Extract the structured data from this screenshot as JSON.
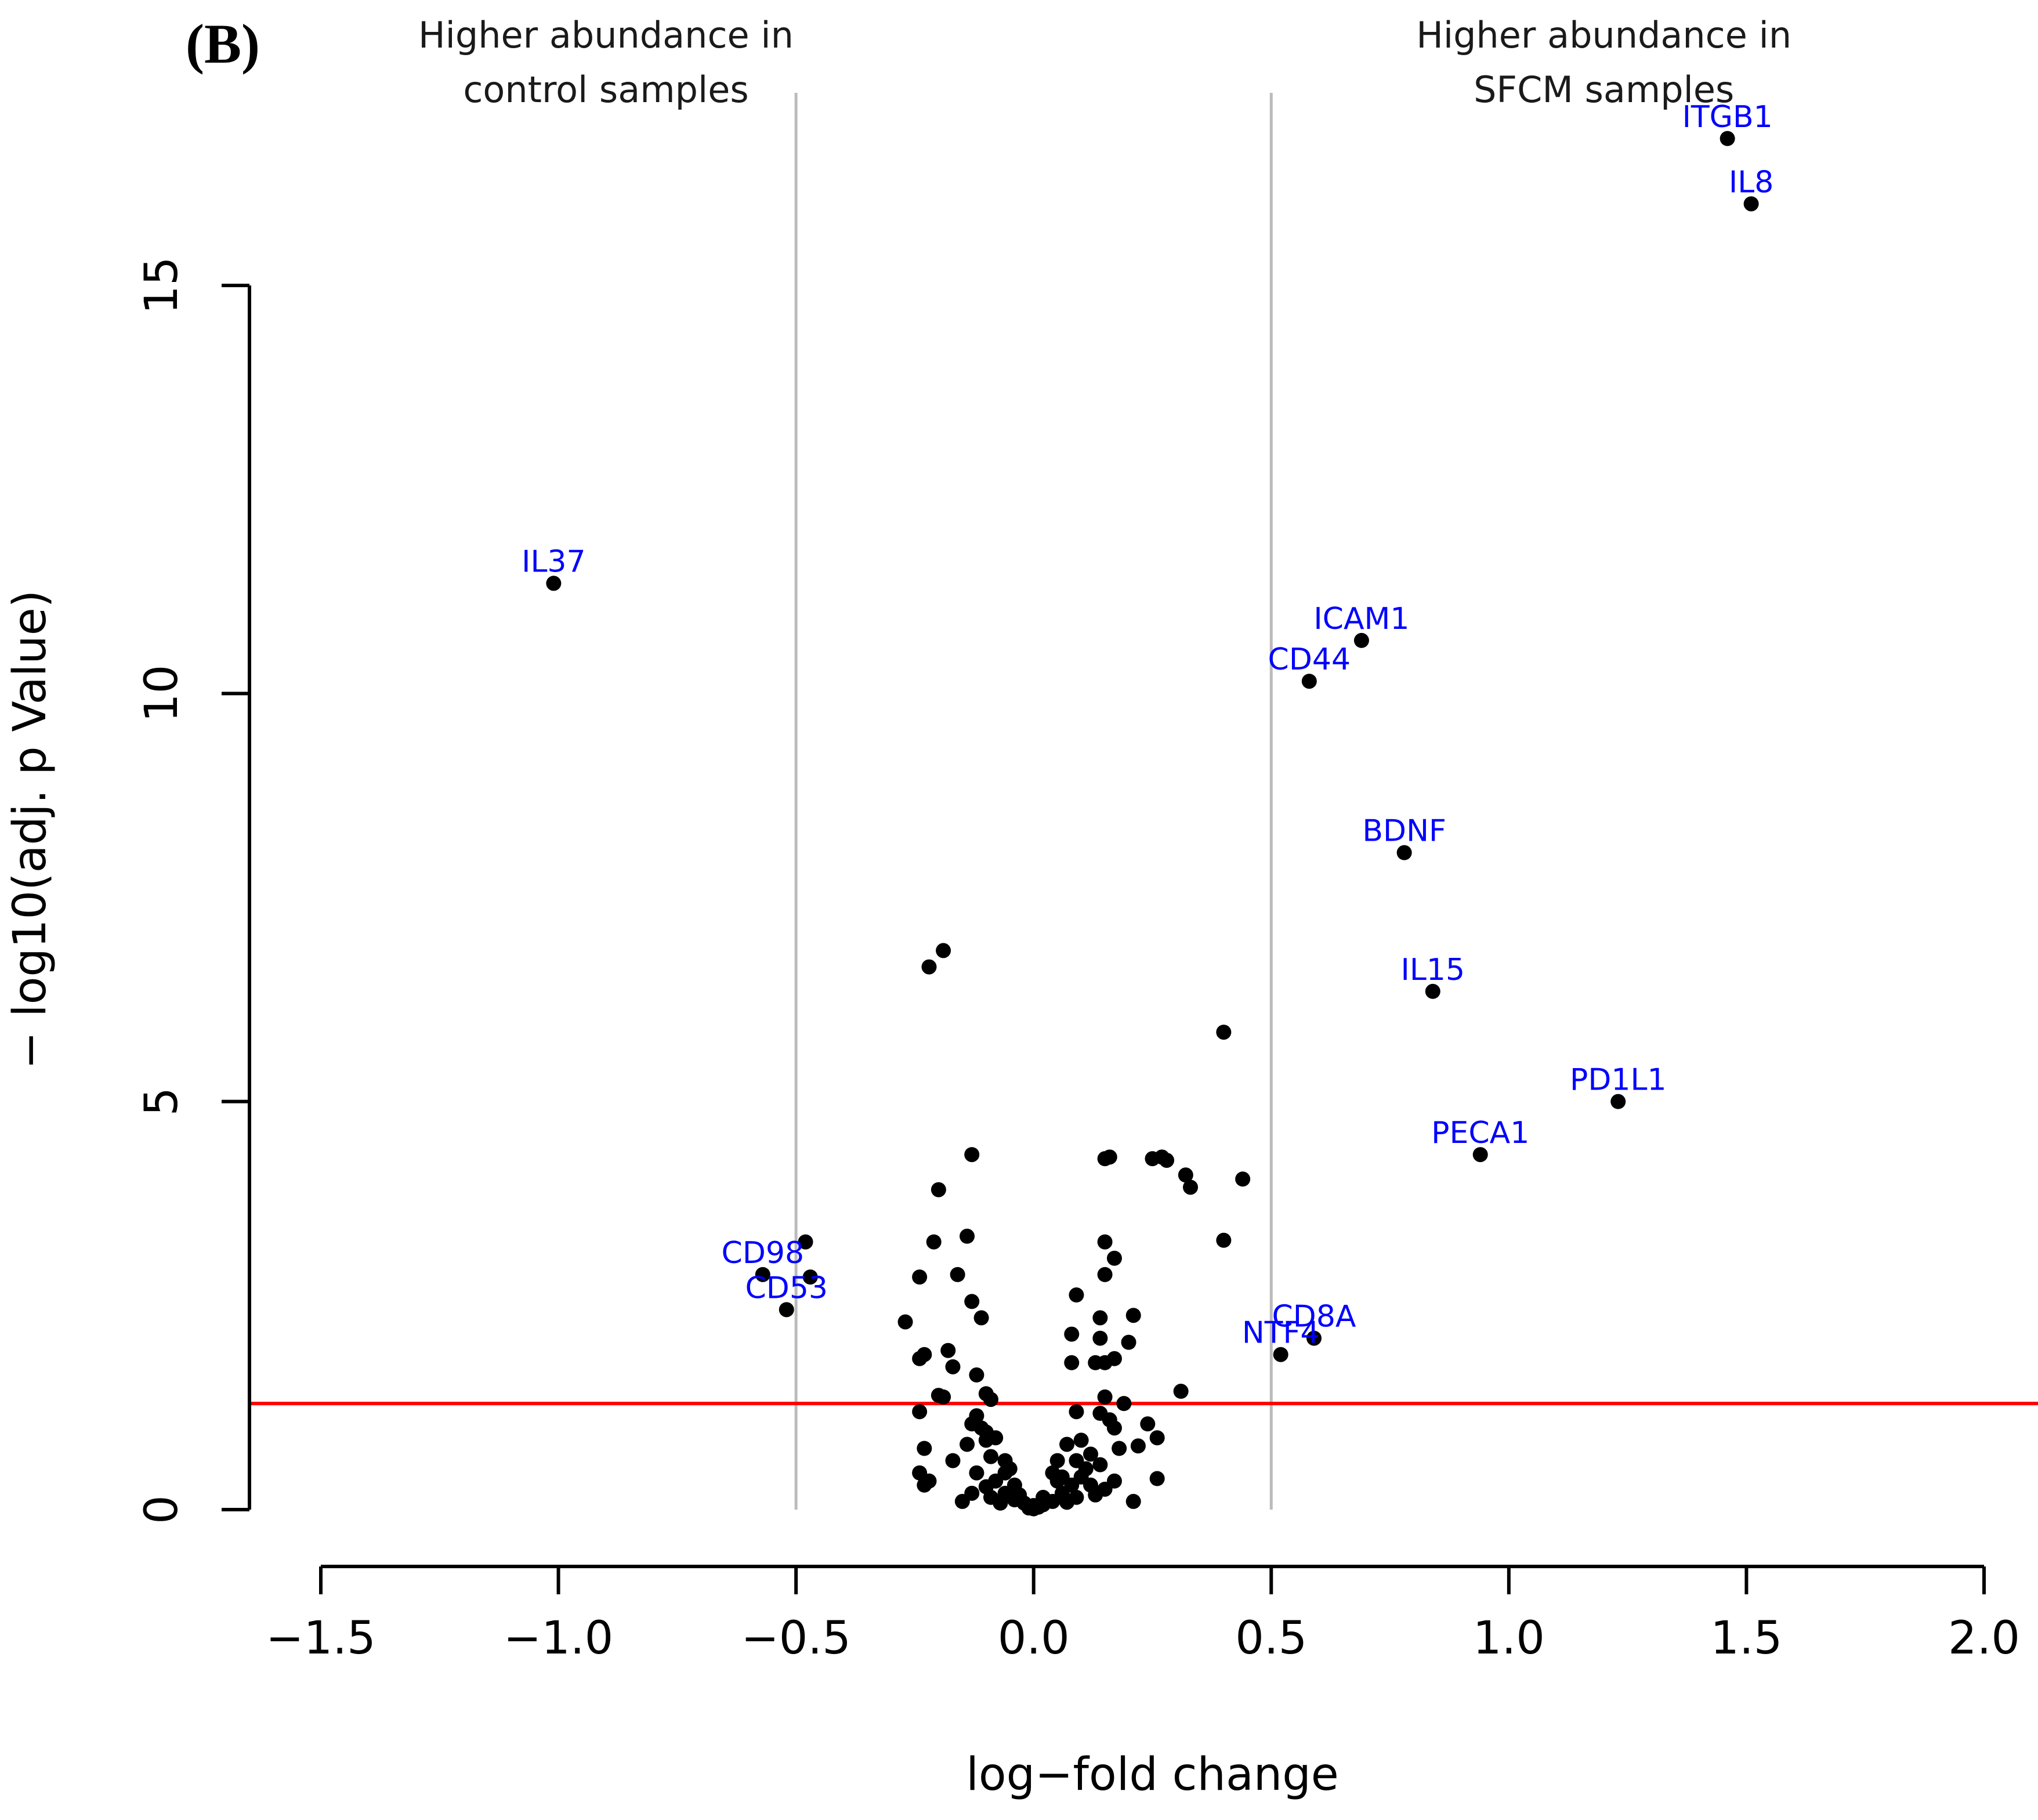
{
  "panel_label": "(B)",
  "chart_data": {
    "type": "scatter",
    "title": "",
    "xlabel": "log−fold change",
    "ylabel": "− log10(adj. p Value)",
    "xlim": [
      -1.5,
      2.0
    ],
    "ylim": [
      0,
      15
    ],
    "x_ticks": [
      -1.5,
      -1.0,
      -0.5,
      0.0,
      0.5,
      1.0,
      1.5,
      2.0
    ],
    "x_tick_labels": [
      "−1.5",
      "−1.0",
      "−0.5",
      "0.0",
      "0.5",
      "1.0",
      "1.5",
      "2.0"
    ],
    "y_ticks": [
      0,
      5,
      10,
      15
    ],
    "y_tick_labels": [
      "0",
      "5",
      "10",
      "15"
    ],
    "grid": false,
    "vertical_lines": [
      {
        "x": -0.5,
        "color": "#bbbbbb"
      },
      {
        "x": 0.5,
        "color": "#bbbbbb"
      }
    ],
    "horizontal_lines": [
      {
        "y": 1.3,
        "color": "#ff0000"
      }
    ],
    "annotations": [
      {
        "lines": [
          "Higher abundance in",
          "control samples"
        ],
        "x": -0.9
      },
      {
        "lines": [
          "Higher abundance in",
          "SFCM samples"
        ],
        "x": 1.2
      }
    ],
    "label_color": "#0000ff",
    "point_color": "#000000",
    "labeled_points": [
      {
        "label": "ITGB1",
        "x": 1.46,
        "y": 16.8
      },
      {
        "label": "IL8",
        "x": 1.51,
        "y": 16.0
      },
      {
        "label": "IL37",
        "x": -1.01,
        "y": 11.35
      },
      {
        "label": "ICAM1",
        "x": 0.69,
        "y": 10.65
      },
      {
        "label": "CD44",
        "x": 0.58,
        "y": 10.15
      },
      {
        "label": "BDNF",
        "x": 0.78,
        "y": 8.05
      },
      {
        "label": "IL15",
        "x": 0.84,
        "y": 6.35
      },
      {
        "label": "PD1L1",
        "x": 1.23,
        "y": 5.0
      },
      {
        "label": "PECA1",
        "x": 0.94,
        "y": 4.35
      },
      {
        "label": "CD98",
        "x": -0.57,
        "y": 2.88
      },
      {
        "label": "CD53",
        "x": -0.52,
        "y": 2.45
      },
      {
        "label": "CD8A",
        "x": 0.59,
        "y": 2.1
      },
      {
        "label": "NTF4",
        "x": 0.52,
        "y": 1.9
      }
    ],
    "points": [
      [
        -0.19,
        6.85
      ],
      [
        -0.22,
        6.65
      ],
      [
        0.4,
        5.85
      ],
      [
        -0.13,
        4.35
      ],
      [
        0.15,
        4.3
      ],
      [
        0.16,
        4.32
      ],
      [
        0.25,
        4.3
      ],
      [
        0.27,
        4.32
      ],
      [
        0.28,
        4.28
      ],
      [
        0.32,
        4.1
      ],
      [
        0.33,
        3.95
      ],
      [
        0.44,
        4.05
      ],
      [
        -0.2,
        3.92
      ],
      [
        -0.48,
        3.28
      ],
      [
        -0.47,
        2.85
      ],
      [
        -0.21,
        3.28
      ],
      [
        -0.14,
        3.35
      ],
      [
        0.4,
        3.3
      ],
      [
        0.15,
        3.28
      ],
      [
        0.17,
        3.08
      ],
      [
        -0.16,
        2.88
      ],
      [
        -0.24,
        2.85
      ],
      [
        0.15,
        2.88
      ],
      [
        -0.13,
        2.55
      ],
      [
        0.09,
        2.63
      ],
      [
        -0.11,
        2.35
      ],
      [
        0.14,
        2.35
      ],
      [
        0.21,
        2.38
      ],
      [
        -0.27,
        2.3
      ],
      [
        0.08,
        2.15
      ],
      [
        0.14,
        2.1
      ],
      [
        0.2,
        2.05
      ],
      [
        -0.18,
        1.95
      ],
      [
        -0.24,
        1.85
      ],
      [
        -0.23,
        1.9
      ],
      [
        0.08,
        1.8
      ],
      [
        0.13,
        1.8
      ],
      [
        0.15,
        1.8
      ],
      [
        0.17,
        1.85
      ],
      [
        -0.17,
        1.75
      ],
      [
        -0.12,
        1.65
      ],
      [
        -0.2,
        1.4
      ],
      [
        -0.19,
        1.38
      ],
      [
        -0.1,
        1.42
      ],
      [
        -0.09,
        1.35
      ],
      [
        0.31,
        1.45
      ],
      [
        0.15,
        1.38
      ],
      [
        0.19,
        1.3
      ],
      [
        -0.24,
        1.2
      ],
      [
        -0.12,
        1.15
      ],
      [
        0.09,
        1.2
      ],
      [
        0.14,
        1.18
      ],
      [
        0.16,
        1.1
      ],
      [
        -0.13,
        1.05
      ],
      [
        -0.11,
        1.0
      ],
      [
        0.17,
        1.0
      ],
      [
        0.24,
        1.05
      ],
      [
        0.26,
        0.88
      ],
      [
        -0.23,
        0.75
      ],
      [
        -0.14,
        0.8
      ],
      [
        -0.1,
        0.85
      ],
      [
        -0.08,
        0.88
      ],
      [
        0.07,
        0.8
      ],
      [
        0.1,
        0.85
      ],
      [
        0.18,
        0.75
      ],
      [
        0.22,
        0.78
      ],
      [
        -0.09,
        0.65
      ],
      [
        -0.06,
        0.6
      ],
      [
        0.05,
        0.6
      ],
      [
        0.09,
        0.6
      ],
      [
        0.14,
        0.55
      ],
      [
        -0.12,
        0.45
      ],
      [
        -0.05,
        0.5
      ],
      [
        0.04,
        0.45
      ],
      [
        0.11,
        0.5
      ],
      [
        -0.24,
        0.45
      ],
      [
        -0.22,
        0.35
      ],
      [
        -0.23,
        0.3
      ],
      [
        0.26,
        0.38
      ],
      [
        0.17,
        0.35
      ],
      [
        0.15,
        0.25
      ],
      [
        -0.08,
        0.35
      ],
      [
        -0.04,
        0.3
      ],
      [
        0.05,
        0.35
      ],
      [
        0.08,
        0.3
      ],
      [
        -0.06,
        0.2
      ],
      [
        -0.03,
        0.18
      ],
      [
        0.02,
        0.15
      ],
      [
        0.06,
        0.2
      ],
      [
        -0.09,
        0.15
      ],
      [
        0.09,
        0.15
      ],
      [
        -0.1,
        0.28
      ],
      [
        0.12,
        0.3
      ],
      [
        -0.04,
        0.12
      ],
      [
        0.04,
        0.1
      ],
      [
        -0.02,
        0.08
      ],
      [
        0.02,
        0.06
      ],
      [
        0.0,
        0.05
      ],
      [
        -0.01,
        0.02
      ],
      [
        0.01,
        0.03
      ],
      [
        0.0,
        0.01
      ],
      [
        -0.07,
        0.08
      ],
      [
        0.07,
        0.09
      ],
      [
        0.21,
        0.1
      ],
      [
        -0.13,
        0.2
      ],
      [
        0.13,
        0.18
      ],
      [
        -0.15,
        0.1
      ],
      [
        -0.17,
        0.6
      ],
      [
        0.12,
        0.68
      ],
      [
        -0.1,
        0.95
      ],
      [
        0.1,
        0.4
      ],
      [
        -0.06,
        0.45
      ],
      [
        0.06,
        0.4
      ]
    ]
  }
}
